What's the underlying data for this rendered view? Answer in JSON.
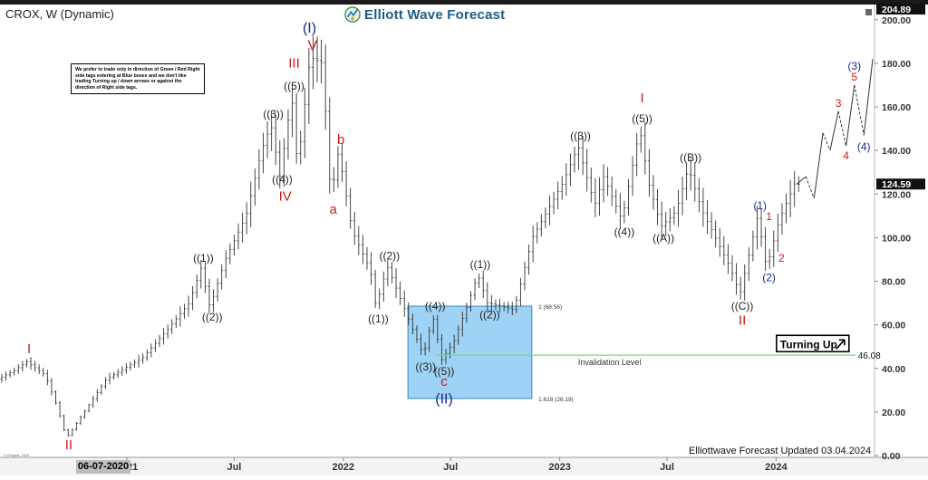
{
  "header": {
    "symbol": "CROX, W (Dynamic)",
    "brand": "Elliott Wave Forecast"
  },
  "note": "We prefer to trade only in direction of Green / Red Right side tags entering at Blue boxes and we don't like trading Turning up / down arrows or against the direction of Right side tags.",
  "footer": {
    "updated": "Elliottwave Forecast Updated 03.04.2024",
    "date_label": "06-07-2020",
    "esignal": "© eSignal, 2024"
  },
  "colors": {
    "bars": "#333333",
    "red_label": "#cc1a1a",
    "blue_label": "#1a2a8c",
    "black_label": "#222222",
    "blue_box": "#9fd3f5",
    "invalidation": "#7fd67f",
    "brand": "#1f5b86"
  },
  "chart_data": {
    "type": "ohlc",
    "ylim": [
      0,
      204.89
    ],
    "yticks": [
      "0.00",
      "20.00",
      "40.00",
      "60.00",
      "80.00",
      "100.00",
      "120.00",
      "140.00",
      "160.00",
      "180.00",
      "200.00"
    ],
    "ytick_values": [
      0,
      20,
      40,
      60,
      80,
      100,
      120,
      140,
      160,
      180,
      200
    ],
    "xticks": [
      {
        "label": "2021",
        "date": "2021-01-01"
      },
      {
        "label": "Jul",
        "date": "2021-07-01"
      },
      {
        "label": "2022",
        "date": "2022-01-01"
      },
      {
        "label": "Jul",
        "date": "2022-07-01"
      },
      {
        "label": "2023",
        "date": "2023-01-01"
      },
      {
        "label": "Jul",
        "date": "2023-07-01"
      },
      {
        "label": "2024",
        "date": "2024-01-01"
      }
    ],
    "x_range": [
      "2020-06-01",
      "2024-06-15"
    ],
    "price_tags": [
      {
        "label": "204.89",
        "value": 204.89
      },
      {
        "label": "124.59",
        "value": 124.59
      }
    ],
    "path": [
      {
        "date": "2020-06-01",
        "price": 35
      },
      {
        "date": "2020-06-29",
        "price": 39
      },
      {
        "date": "2020-07-20",
        "price": 43
      },
      {
        "date": "2020-08-20",
        "price": 37
      },
      {
        "date": "2020-09-10",
        "price": 22
      },
      {
        "date": "2020-09-25",
        "price": 8
      },
      {
        "date": "2020-10-20",
        "price": 18
      },
      {
        "date": "2020-12-01",
        "price": 35
      },
      {
        "date": "2021-02-01",
        "price": 45
      },
      {
        "date": "2021-03-15",
        "price": 58
      },
      {
        "date": "2021-04-20",
        "price": 70
      },
      {
        "date": "2021-05-10",
        "price": 86
      },
      {
        "date": "2021-05-25",
        "price": 68
      },
      {
        "date": "2021-06-20",
        "price": 90
      },
      {
        "date": "2021-07-25",
        "price": 110
      },
      {
        "date": "2021-08-20",
        "price": 140
      },
      {
        "date": "2021-09-05",
        "price": 152
      },
      {
        "date": "2021-09-20",
        "price": 128
      },
      {
        "date": "2021-10-10",
        "price": 165
      },
      {
        "date": "2021-10-20",
        "price": 132
      },
      {
        "date": "2021-11-10",
        "price": 183
      },
      {
        "date": "2021-12-01",
        "price": 180
      },
      {
        "date": "2021-12-15",
        "price": 118
      },
      {
        "date": "2021-12-28",
        "price": 140
      },
      {
        "date": "2022-01-20",
        "price": 103
      },
      {
        "date": "2022-02-20",
        "price": 85
      },
      {
        "date": "2022-03-01",
        "price": 68
      },
      {
        "date": "2022-03-20",
        "price": 87
      },
      {
        "date": "2022-04-20",
        "price": 66
      },
      {
        "date": "2022-05-20",
        "price": 46
      },
      {
        "date": "2022-06-05",
        "price": 64
      },
      {
        "date": "2022-06-20",
        "price": 44
      },
      {
        "date": "2022-07-10",
        "price": 52
      },
      {
        "date": "2022-08-01",
        "price": 68
      },
      {
        "date": "2022-08-20",
        "price": 83
      },
      {
        "date": "2022-09-05",
        "price": 70
      },
      {
        "date": "2022-10-20",
        "price": 67
      },
      {
        "date": "2022-11-20",
        "price": 100
      },
      {
        "date": "2023-01-10",
        "price": 125
      },
      {
        "date": "2023-02-05",
        "price": 142
      },
      {
        "date": "2023-03-05",
        "price": 115
      },
      {
        "date": "2023-03-20",
        "price": 128
      },
      {
        "date": "2023-04-20",
        "price": 108
      },
      {
        "date": "2023-05-20",
        "price": 150
      },
      {
        "date": "2023-06-05",
        "price": 124
      },
      {
        "date": "2023-06-25",
        "price": 105
      },
      {
        "date": "2023-07-20",
        "price": 112
      },
      {
        "date": "2023-08-10",
        "price": 132
      },
      {
        "date": "2023-09-01",
        "price": 113
      },
      {
        "date": "2023-10-20",
        "price": 86
      },
      {
        "date": "2023-11-05",
        "price": 74
      },
      {
        "date": "2023-12-05",
        "price": 110
      },
      {
        "date": "2023-12-20",
        "price": 86
      },
      {
        "date": "2024-01-10",
        "price": 108
      },
      {
        "date": "2024-02-05",
        "price": 124.59
      }
    ],
    "projection": [
      {
        "date": "2024-02-05",
        "price": 124.59
      },
      {
        "date": "2024-02-20",
        "price": 128
      },
      {
        "date": "2024-03-05",
        "price": 118
      },
      {
        "date": "2024-03-20",
        "price": 148
      },
      {
        "date": "2024-04-01",
        "price": 140
      },
      {
        "date": "2024-04-15",
        "price": 158
      },
      {
        "date": "2024-04-28",
        "price": 142
      },
      {
        "date": "2024-05-12",
        "price": 170
      },
      {
        "date": "2024-05-28",
        "price": 147
      },
      {
        "date": "2024-06-12",
        "price": 182
      }
    ],
    "blue_box": {
      "date_from": "2022-04-20",
      "date_to": "2022-11-15",
      "price_from": 26.19,
      "price_to": 68.56
    },
    "box_labels": [
      {
        "text": "1 (68.56)",
        "date": "2022-11-20",
        "price": 68.56
      },
      {
        "text": "1.618 (26.19)",
        "date": "2022-11-20",
        "price": 26.19
      }
    ],
    "invalidation": {
      "price": 46.08,
      "value_label": "46.08",
      "label": "Invalidation Level",
      "date_from": "2022-06-05",
      "date_to": "2024-05-15",
      "label_date": "2023-02-01"
    },
    "turning_up": {
      "label": "Turning Up",
      "date": "2024-03-15",
      "price": 51
    },
    "wave_labels": [
      {
        "text": "I",
        "date": "2020-07-20",
        "price": 47,
        "color": "red",
        "size": 15
      },
      {
        "text": "II",
        "date": "2020-09-25",
        "price": 3,
        "color": "red",
        "size": 15
      },
      {
        "text": "((1))",
        "date": "2021-05-10",
        "price": 89,
        "color": "black",
        "size": 12
      },
      {
        "text": "((2))",
        "date": "2021-05-25",
        "price": 62,
        "color": "black",
        "size": 12
      },
      {
        "text": "((3))",
        "date": "2021-09-05",
        "price": 155,
        "color": "black",
        "size": 12
      },
      {
        "text": "((4))",
        "date": "2021-09-20",
        "price": 125,
        "color": "black",
        "size": 12
      },
      {
        "text": "((5))",
        "date": "2021-10-10",
        "price": 168,
        "color": "black",
        "size": 12
      },
      {
        "text": "III",
        "date": "2021-10-10",
        "price": 178,
        "color": "red",
        "size": 15
      },
      {
        "text": "IV",
        "date": "2021-09-25",
        "price": 117,
        "color": "red",
        "size": 15
      },
      {
        "text": "V",
        "date": "2021-11-10",
        "price": 186,
        "color": "red",
        "size": 16
      },
      {
        "text": "(I)",
        "date": "2021-11-05",
        "price": 194,
        "color": "blue",
        "size": 16
      },
      {
        "text": "b",
        "date": "2021-12-28",
        "price": 143,
        "color": "red",
        "size": 15
      },
      {
        "text": "a",
        "date": "2021-12-15",
        "price": 111,
        "color": "red",
        "size": 15
      },
      {
        "text": "((2))",
        "date": "2022-03-20",
        "price": 90,
        "color": "black",
        "size": 12
      },
      {
        "text": "((1))",
        "date": "2022-03-01",
        "price": 61,
        "color": "black",
        "size": 12
      },
      {
        "text": "((4))",
        "date": "2022-06-05",
        "price": 67,
        "color": "black",
        "size": 12
      },
      {
        "text": "((3))",
        "date": "2022-05-20",
        "price": 39,
        "color": "black",
        "size": 12
      },
      {
        "text": "((5))",
        "date": "2022-06-20",
        "price": 37,
        "color": "black",
        "size": 12
      },
      {
        "text": "c",
        "date": "2022-06-20",
        "price": 32,
        "color": "red",
        "size": 15
      },
      {
        "text": "(II)",
        "date": "2022-06-20",
        "price": 24,
        "color": "blue",
        "size": 16
      },
      {
        "text": "((1))",
        "date": "2022-08-20",
        "price": 86,
        "color": "black",
        "size": 12
      },
      {
        "text": "((2))",
        "date": "2022-09-05",
        "price": 63,
        "color": "black",
        "size": 12
      },
      {
        "text": "((3))",
        "date": "2023-02-05",
        "price": 145,
        "color": "black",
        "size": 12
      },
      {
        "text": "((4))",
        "date": "2023-04-20",
        "price": 101,
        "color": "black",
        "size": 12
      },
      {
        "text": "((5))",
        "date": "2023-05-20",
        "price": 153,
        "color": "black",
        "size": 12
      },
      {
        "text": "I",
        "date": "2023-05-20",
        "price": 162,
        "color": "red",
        "size": 15
      },
      {
        "text": "((A))",
        "date": "2023-06-25",
        "price": 98,
        "color": "black",
        "size": 12
      },
      {
        "text": "((B))",
        "date": "2023-08-10",
        "price": 135,
        "color": "black",
        "size": 12
      },
      {
        "text": "((C))",
        "date": "2023-11-05",
        "price": 67,
        "color": "black",
        "size": 12
      },
      {
        "text": "II",
        "date": "2023-11-05",
        "price": 60,
        "color": "red",
        "size": 15
      },
      {
        "text": "(1)",
        "date": "2023-12-05",
        "price": 113,
        "color": "blue",
        "size": 12
      },
      {
        "text": "1",
        "date": "2023-12-20",
        "price": 108,
        "color": "red",
        "size": 12
      },
      {
        "text": "(2)",
        "date": "2023-12-20",
        "price": 80,
        "color": "blue",
        "size": 12
      },
      {
        "text": "2",
        "date": "2024-01-10",
        "price": 89,
        "color": "red",
        "size": 12
      },
      {
        "text": "3",
        "date": "2024-04-15",
        "price": 160,
        "color": "red",
        "size": 12
      },
      {
        "text": "4",
        "date": "2024-04-28",
        "price": 136,
        "color": "red",
        "size": 12
      },
      {
        "text": "5",
        "date": "2024-05-12",
        "price": 172,
        "color": "red",
        "size": 12
      },
      {
        "text": "(3)",
        "date": "2024-05-12",
        "price": 177,
        "color": "blue",
        "size": 12
      },
      {
        "text": "(4)",
        "date": "2024-05-28",
        "price": 140,
        "color": "blue",
        "size": 12
      }
    ]
  }
}
